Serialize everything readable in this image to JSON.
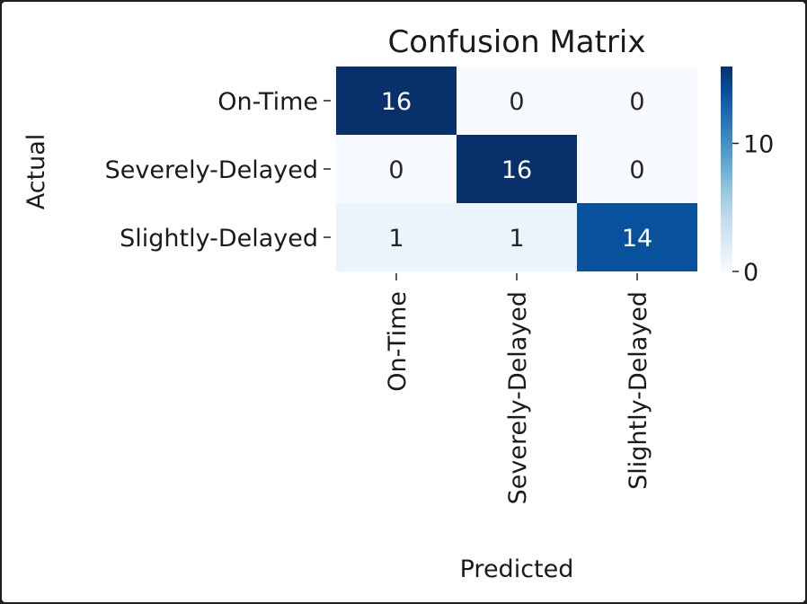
{
  "chart_data": {
    "type": "heatmap",
    "title": "Confusion Matrix",
    "xlabel": "Predicted",
    "ylabel": "Actual",
    "x_categories": [
      "On-Time",
      "Severely-Delayed",
      "Slightly-Delayed"
    ],
    "y_categories": [
      "On-Time",
      "Severely-Delayed",
      "Slightly-Delayed"
    ],
    "values": [
      [
        16,
        0,
        0
      ],
      [
        0,
        16,
        0
      ],
      [
        1,
        1,
        14
      ]
    ],
    "colormap": "Blues",
    "vmin": 0,
    "vmax": 16,
    "colorbar_ticks": [
      0,
      10
    ]
  },
  "colors": {
    "cmap_low": "#f7fbff",
    "cmap_high": "#08306b",
    "text_dark": "#262626",
    "text_light": "#ffffff"
  }
}
